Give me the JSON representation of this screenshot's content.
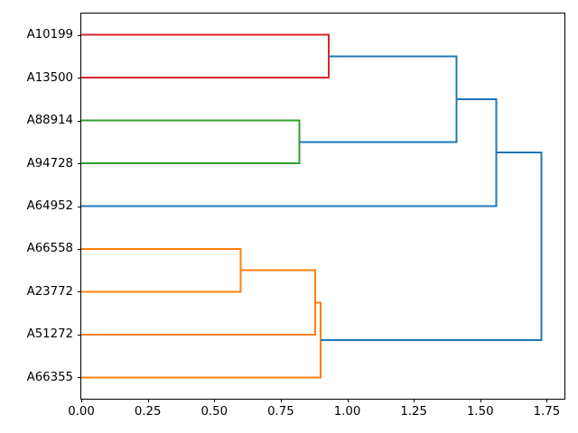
{
  "figure": {
    "background_color": "#ffffff",
    "title": ""
  },
  "axes": {
    "spine_color": "#000000",
    "tick_color": "#000000",
    "tick_label_color": "#000000",
    "x_tick_labels": [
      "0.00",
      "0.25",
      "0.50",
      "0.75",
      "1.00",
      "1.25",
      "1.50",
      "1.75"
    ]
  },
  "chart_data": {
    "type": "dendrogram",
    "orientation": "right",
    "title": "",
    "xlabel": "",
    "ylabel": "",
    "xlim": [
      0,
      1.82
    ],
    "xticks": [
      0.0,
      0.25,
      0.5,
      0.75,
      1.0,
      1.25,
      1.5,
      1.75
    ],
    "grid": false,
    "legend": false,
    "leaf_labels": [
      "A10199",
      "A13500",
      "A88914",
      "A94728",
      "A64952",
      "A66558",
      "A23772",
      "A51272",
      "A66355"
    ],
    "leaf_line_colors": [
      "#d62728",
      "#d62728",
      "#2ca02c",
      "#2ca02c",
      "#1f77b4",
      "#ff7f0e",
      "#ff7f0e",
      "#ff7f0e",
      "#ff7f0e"
    ],
    "links": [
      {
        "name": "red-pair-A10199-A13500",
        "a": {
          "leaf": 0
        },
        "b": {
          "leaf": 1
        },
        "height": 0.93,
        "color": "#d62728"
      },
      {
        "name": "green-pair-A88914-A94728",
        "a": {
          "leaf": 2
        },
        "b": {
          "leaf": 3
        },
        "height": 0.82,
        "color": "#2ca02c"
      },
      {
        "name": "orange-pair-A66558-A23772",
        "a": {
          "leaf": 5
        },
        "b": {
          "leaf": 6
        },
        "height": 0.6,
        "color": "#ff7f0e"
      },
      {
        "name": "orange-plus-A51272",
        "a": {
          "link": 2
        },
        "b": {
          "leaf": 7
        },
        "height": 0.88,
        "color": "#ff7f0e"
      },
      {
        "name": "orange-plus-A66355",
        "a": {
          "link": 3
        },
        "b": {
          "leaf": 8
        },
        "height": 0.9,
        "color": "#ff7f0e"
      },
      {
        "name": "blue-red-green",
        "a": {
          "link": 0
        },
        "b": {
          "link": 1
        },
        "height": 1.41,
        "color": "#1f77b4"
      },
      {
        "name": "blue-plus-A64952",
        "a": {
          "link": 5
        },
        "b": {
          "leaf": 4
        },
        "height": 1.56,
        "color": "#1f77b4"
      },
      {
        "name": "root",
        "a": {
          "link": 6
        },
        "b": {
          "link": 4
        },
        "height": 1.73,
        "color": "#1f77b4"
      }
    ],
    "link_colors": {
      "above_threshold": "#1f77b4",
      "cluster_red": "#d62728",
      "cluster_green": "#2ca02c",
      "cluster_orange": "#ff7f0e"
    }
  }
}
